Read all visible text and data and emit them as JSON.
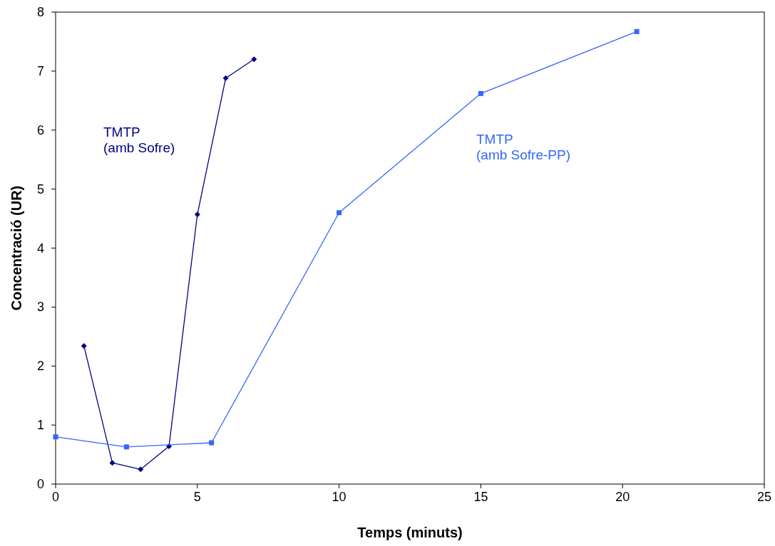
{
  "chart_data": {
    "type": "line",
    "xlabel": "Temps (minuts)",
    "ylabel": "Concentració (UR)",
    "xlim": [
      0,
      25
    ],
    "xticks": [
      0,
      5,
      10,
      15,
      20,
      25
    ],
    "ylim": [
      0,
      8
    ],
    "yticks": [
      0,
      1,
      2,
      3,
      4,
      5,
      6,
      7,
      8
    ],
    "grid": false,
    "line_style": "solid",
    "series": [
      {
        "name": "TMTP\n(amb Sofre)",
        "color": "#000080",
        "marker": "diamond",
        "x": [
          1,
          2,
          3,
          4,
          5,
          6,
          7
        ],
        "values": [
          2.34,
          0.36,
          0.25,
          0.64,
          4.57,
          6.88,
          7.2
        ]
      },
      {
        "name": "TMTP\n(amb Sofre-PP)",
        "color": "#3366ff",
        "marker": "square",
        "x": [
          0,
          2.5,
          5.5,
          10,
          15,
          20.5
        ],
        "values": [
          0.8,
          0.63,
          0.7,
          4.6,
          6.62,
          7.67
        ]
      }
    ]
  }
}
